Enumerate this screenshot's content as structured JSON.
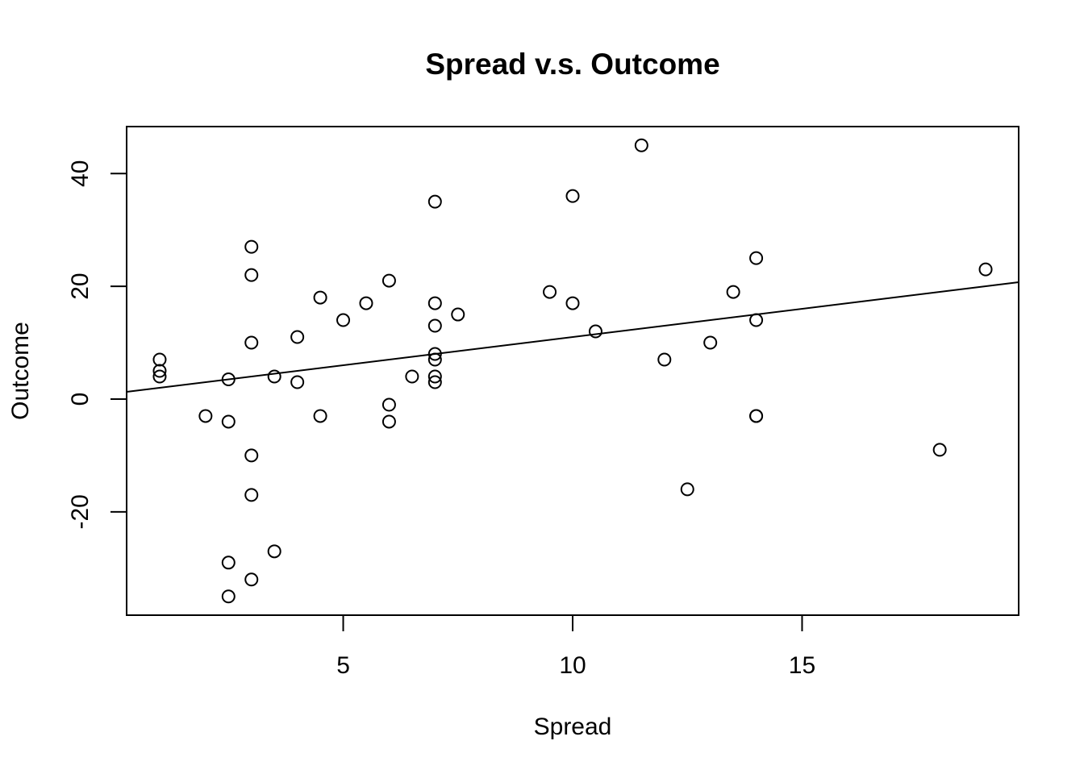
{
  "chart_data": {
    "type": "scatter",
    "title": "Spread v.s. Outcome",
    "xlabel": "Spread",
    "ylabel": "Outcome",
    "xlim": [
      0.28,
      19.72
    ],
    "ylim": [
      -38.32,
      48.32
    ],
    "xticks": [
      5,
      10,
      15
    ],
    "yticks": [
      -20,
      0,
      20,
      40
    ],
    "xtick_labels": [
      "5",
      "10",
      "15"
    ],
    "ytick_labels": [
      "-20",
      "0",
      "20",
      "40"
    ],
    "grid": false,
    "regression_line": {
      "intercept": 1.0,
      "slope": 1.0
    },
    "points": [
      {
        "x": 1,
        "y": 7
      },
      {
        "x": 1,
        "y": 5
      },
      {
        "x": 1,
        "y": 4
      },
      {
        "x": 2,
        "y": -3
      },
      {
        "x": 2.5,
        "y": 3.5
      },
      {
        "x": 2.5,
        "y": -4
      },
      {
        "x": 2.5,
        "y": -29
      },
      {
        "x": 2.5,
        "y": -35
      },
      {
        "x": 3,
        "y": 27
      },
      {
        "x": 3,
        "y": 22
      },
      {
        "x": 3,
        "y": 10
      },
      {
        "x": 3,
        "y": -10
      },
      {
        "x": 3,
        "y": -17
      },
      {
        "x": 3,
        "y": -32
      },
      {
        "x": 3.5,
        "y": 4
      },
      {
        "x": 3.5,
        "y": -27
      },
      {
        "x": 4,
        "y": 11
      },
      {
        "x": 4,
        "y": 3
      },
      {
        "x": 4.5,
        "y": 18
      },
      {
        "x": 4.5,
        "y": -3
      },
      {
        "x": 5,
        "y": 14
      },
      {
        "x": 5.5,
        "y": 17
      },
      {
        "x": 6,
        "y": 21
      },
      {
        "x": 6,
        "y": -1
      },
      {
        "x": 6,
        "y": -4
      },
      {
        "x": 6.5,
        "y": 4
      },
      {
        "x": 7,
        "y": 35
      },
      {
        "x": 7,
        "y": 17
      },
      {
        "x": 7,
        "y": 13
      },
      {
        "x": 7,
        "y": 8
      },
      {
        "x": 7,
        "y": 7
      },
      {
        "x": 7,
        "y": 4
      },
      {
        "x": 7,
        "y": 3
      },
      {
        "x": 7.5,
        "y": 15
      },
      {
        "x": 9.5,
        "y": 19
      },
      {
        "x": 10,
        "y": 36
      },
      {
        "x": 10,
        "y": 17
      },
      {
        "x": 10.5,
        "y": 12
      },
      {
        "x": 11.5,
        "y": 45
      },
      {
        "x": 12,
        "y": 7
      },
      {
        "x": 12.5,
        "y": -16
      },
      {
        "x": 13,
        "y": 10
      },
      {
        "x": 13.5,
        "y": 19
      },
      {
        "x": 14,
        "y": 25
      },
      {
        "x": 14,
        "y": 14
      },
      {
        "x": 14,
        "y": -3
      },
      {
        "x": 14,
        "y": -3
      },
      {
        "x": 18,
        "y": -9
      },
      {
        "x": 19,
        "y": 23
      }
    ]
  }
}
